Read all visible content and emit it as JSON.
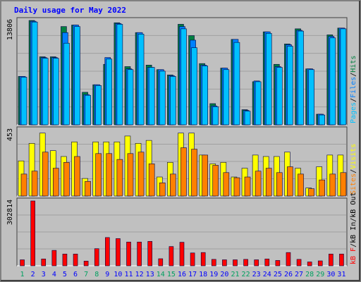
{
  "chart_data": {
    "type": "bar",
    "title": "Daily usage for May 2022",
    "categories": [
      "1",
      "2",
      "3",
      "4",
      "5",
      "6",
      "7",
      "8",
      "9",
      "10",
      "11",
      "12",
      "13",
      "14",
      "15",
      "16",
      "17",
      "18",
      "19",
      "20",
      "21",
      "22",
      "23",
      "24",
      "25",
      "26",
      "27",
      "28",
      "29",
      "30",
      "31"
    ],
    "weekend_days": [
      "1",
      "7",
      "8",
      "14",
      "15",
      "21",
      "22",
      "28",
      "29"
    ],
    "panels": [
      {
        "id": "hits_files_pages",
        "y_tick_label": "13806",
        "ylim": [
          0,
          13806
        ],
        "legend": [
          "Pages",
          "Files",
          "Hits"
        ],
        "series": [
          {
            "name": "Hits",
            "color": "#008040",
            "values": [
              6400,
              13806,
              9000,
              9000,
              13000,
              13200,
              4300,
              5300,
              8000,
              13500,
              7700,
              12200,
              7900,
              7300,
              6600,
              13300,
              11800,
              8100,
              2800,
              7500,
              11300,
              2000,
              5700,
              12300,
              8000,
              10700,
              12700,
              7400,
              1400,
              11900,
              12800
            ]
          },
          {
            "name": "Files",
            "color": "#0080FF",
            "values": [
              6400,
              13700,
              8900,
              8900,
              12200,
              13200,
              4000,
              5300,
              8900,
              13400,
              7400,
              12200,
              7600,
              7300,
              6500,
              13000,
              11200,
              7900,
              2500,
              7500,
              11300,
              1900,
              5800,
              12300,
              7700,
              10600,
              12500,
              7400,
              1400,
              11700,
              12800
            ]
          },
          {
            "name": "Pages",
            "color": "#00C0FF",
            "values": [
              6300,
              13600,
              8800,
              8800,
              10800,
              13000,
              3900,
              5200,
              8700,
              13300,
              7300,
              12000,
              7600,
              7100,
              6400,
              12700,
              10200,
              7800,
              2400,
              7300,
              10900,
              1800,
              5700,
              12100,
              7600,
              10400,
              12400,
              7300,
              1300,
              11500,
              12700
            ]
          }
        ]
      },
      {
        "id": "visits_sites",
        "y_tick_label": "453",
        "ylim": [
          0,
          453
        ],
        "legend": [
          "Sites",
          "Visits"
        ],
        "series": [
          {
            "name": "Visits",
            "color": "#FFFF00",
            "values": [
              240,
              360,
              430,
              310,
              270,
              370,
              120,
              370,
              370,
              370,
              410,
              360,
              380,
              130,
              230,
              430,
              430,
              280,
              220,
              230,
              130,
              190,
              280,
              270,
              270,
              300,
              190,
              55,
              200,
              280,
              280
            ]
          },
          {
            "name": "Sites",
            "color": "#FF8000",
            "values": [
              150,
              170,
              300,
              190,
              230,
              270,
              100,
              290,
              290,
              250,
              290,
              300,
              220,
              90,
              150,
              330,
              320,
              280,
              210,
              160,
              125,
              130,
              170,
              190,
              160,
              200,
              150,
              50,
              110,
              150,
              160
            ]
          }
        ]
      },
      {
        "id": "kbytes",
        "y_tick_label": "302814",
        "ylim": [
          0,
          302814
        ],
        "legend": [
          "kB F",
          "kB In",
          "kB Out"
        ],
        "series": [
          {
            "name": "kB F",
            "color": "#FF0000",
            "values": [
              28000,
              302814,
              32000,
              72000,
              55000,
              55000,
              22000,
              80000,
              132000,
              127000,
              111000,
              111000,
              114000,
              33000,
              90000,
              110000,
              60000,
              62000,
              30000,
              28000,
              28000,
              30000,
              28000,
              32000,
              25000,
              62000,
              30000,
              18000,
              23000,
              55000,
              55000
            ]
          }
        ]
      }
    ]
  },
  "colors": {
    "frame_outer": "#808080",
    "frame_inner": "#C0C0C0",
    "plot_bg": "#C0C0C0",
    "grid": "#A0A0A0",
    "title": "#0000FF",
    "weekday_label": "#0000FF",
    "weekend_label": "#00A060",
    "tick_label": "#000000"
  }
}
